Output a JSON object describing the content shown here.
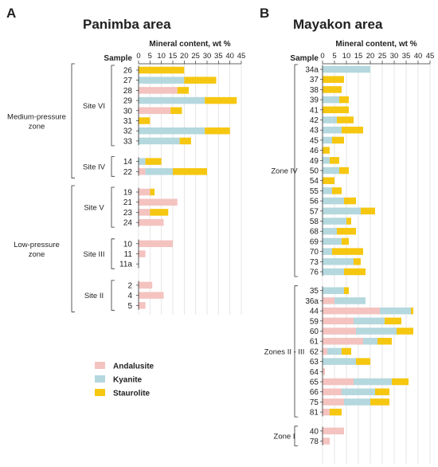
{
  "colors": {
    "Andalusite": "#f4c3c0",
    "Kyanite": "#b4d8de",
    "Staurolite": "#f6c710",
    "grid": "#dcdcdc",
    "axis": "#333333"
  },
  "legend": [
    {
      "name": "Andalusite",
      "color": "#f4c3c0"
    },
    {
      "name": "Kyanite",
      "color": "#b4d8de"
    },
    {
      "name": "Staurolite",
      "color": "#f6c710"
    }
  ],
  "chart_data": [
    {
      "type": "bar",
      "panel": "A",
      "title": "Panimba area",
      "xlabel": "Mineral content, wt %",
      "ylabel": "Sample",
      "xlim": [
        0,
        45
      ],
      "xticks": [
        0,
        5,
        10,
        15,
        20,
        25,
        30,
        35,
        40,
        45
      ],
      "stacked": true,
      "orientation": "horizontal",
      "series_names": [
        "Andalusite",
        "Kyanite",
        "Staurolite"
      ],
      "zones": [
        {
          "label": "Medium-pressure zone",
          "label_lines": [
            "Medium-pressure",
            "zone"
          ]
        },
        {
          "label": "Low-pressure zone",
          "label_lines": [
            "Low-pressure",
            "zone"
          ]
        }
      ],
      "groups": [
        {
          "label": "Site VI",
          "samples": [
            {
              "sample": "26",
              "Andalusite": 0,
              "Kyanite": 0,
              "Staurolite": 20
            },
            {
              "sample": "27",
              "Andalusite": 0,
              "Kyanite": 20,
              "Staurolite": 14
            },
            {
              "sample": "28",
              "Andalusite": 17,
              "Kyanite": 0,
              "Staurolite": 5
            },
            {
              "sample": "29",
              "Andalusite": 0,
              "Kyanite": 29,
              "Staurolite": 14
            },
            {
              "sample": "30",
              "Andalusite": 14,
              "Kyanite": 0,
              "Staurolite": 5
            },
            {
              "sample": "31",
              "Andalusite": 0,
              "Kyanite": 0,
              "Staurolite": 5
            },
            {
              "sample": "32",
              "Andalusite": 0,
              "Kyanite": 29,
              "Staurolite": 11
            },
            {
              "sample": "33",
              "Andalusite": 0,
              "Kyanite": 18,
              "Staurolite": 5
            }
          ]
        },
        {
          "label": "Site IV",
          "samples": [
            {
              "sample": "14",
              "Andalusite": 0,
              "Kyanite": 3,
              "Staurolite": 7
            },
            {
              "sample": "22",
              "Andalusite": 3,
              "Kyanite": 12,
              "Staurolite": 15
            }
          ]
        },
        {
          "label": "Site V",
          "samples": [
            {
              "sample": "19",
              "Andalusite": 5,
              "Kyanite": 0,
              "Staurolite": 2
            },
            {
              "sample": "21",
              "Andalusite": 17,
              "Kyanite": 0,
              "Staurolite": 0
            },
            {
              "sample": "23",
              "Andalusite": 5,
              "Kyanite": 0,
              "Staurolite": 8
            },
            {
              "sample": "24",
              "Andalusite": 11,
              "Kyanite": 0,
              "Staurolite": 0
            }
          ]
        },
        {
          "label": "Site III",
          "samples": [
            {
              "sample": "10",
              "Andalusite": 15,
              "Kyanite": 0,
              "Staurolite": 0
            },
            {
              "sample": "11",
              "Andalusite": 3,
              "Kyanite": 0,
              "Staurolite": 0
            },
            {
              "sample": "11a",
              "Andalusite": 0,
              "Kyanite": 0,
              "Staurolite": 0
            }
          ]
        },
        {
          "label": "Site II",
          "samples": [
            {
              "sample": "2",
              "Andalusite": 6,
              "Kyanite": 0,
              "Staurolite": 0
            },
            {
              "sample": "4",
              "Andalusite": 11,
              "Kyanite": 0,
              "Staurolite": 0
            },
            {
              "sample": "5",
              "Andalusite": 3,
              "Kyanite": 0,
              "Staurolite": 0
            }
          ]
        }
      ]
    },
    {
      "type": "bar",
      "panel": "B",
      "title": "Mayakon area",
      "xlabel": "Mineral content, wt %",
      "ylabel": "Sample",
      "xlim": [
        0,
        45
      ],
      "xticks": [
        0,
        5,
        10,
        15,
        20,
        25,
        30,
        35,
        40,
        45
      ],
      "stacked": true,
      "orientation": "horizontal",
      "series_names": [
        "Andalusite",
        "Kyanite",
        "Staurolite"
      ],
      "groups": [
        {
          "label": "Zone IV",
          "samples": [
            {
              "sample": "34a",
              "Andalusite": 0,
              "Kyanite": 20,
              "Staurolite": 0
            },
            {
              "sample": "37",
              "Andalusite": 0,
              "Kyanite": 0,
              "Staurolite": 9
            },
            {
              "sample": "38",
              "Andalusite": 0,
              "Kyanite": 0,
              "Staurolite": 8
            },
            {
              "sample": "39",
              "Andalusite": 0,
              "Kyanite": 7,
              "Staurolite": 4
            },
            {
              "sample": "41",
              "Andalusite": 0,
              "Kyanite": 0,
              "Staurolite": 11
            },
            {
              "sample": "42",
              "Andalusite": 0,
              "Kyanite": 6,
              "Staurolite": 7
            },
            {
              "sample": "43",
              "Andalusite": 0,
              "Kyanite": 8,
              "Staurolite": 9
            },
            {
              "sample": "45",
              "Andalusite": 0,
              "Kyanite": 4,
              "Staurolite": 5
            },
            {
              "sample": "46",
              "Andalusite": 0,
              "Kyanite": 0,
              "Staurolite": 3
            },
            {
              "sample": "49",
              "Andalusite": 0,
              "Kyanite": 3,
              "Staurolite": 4
            },
            {
              "sample": "50",
              "Andalusite": 0,
              "Kyanite": 7,
              "Staurolite": 4
            },
            {
              "sample": "54",
              "Andalusite": 0,
              "Kyanite": 0,
              "Staurolite": 5
            },
            {
              "sample": "55",
              "Andalusite": 0,
              "Kyanite": 4,
              "Staurolite": 4
            },
            {
              "sample": "56",
              "Andalusite": 0,
              "Kyanite": 9,
              "Staurolite": 5
            },
            {
              "sample": "57",
              "Andalusite": 0,
              "Kyanite": 16,
              "Staurolite": 6
            },
            {
              "sample": "58",
              "Andalusite": 0,
              "Kyanite": 10,
              "Staurolite": 2
            },
            {
              "sample": "68",
              "Andalusite": 0,
              "Kyanite": 6,
              "Staurolite": 8
            },
            {
              "sample": "69",
              "Andalusite": 0,
              "Kyanite": 8,
              "Staurolite": 3
            },
            {
              "sample": "70",
              "Andalusite": 0,
              "Kyanite": 4,
              "Staurolite": 13
            },
            {
              "sample": "73",
              "Andalusite": 0,
              "Kyanite": 13,
              "Staurolite": 3
            },
            {
              "sample": "76",
              "Andalusite": 0,
              "Kyanite": 9,
              "Staurolite": 9
            }
          ]
        },
        {
          "label": "Zones II - III",
          "samples": [
            {
              "sample": "35",
              "Andalusite": 0,
              "Kyanite": 9,
              "Staurolite": 2
            },
            {
              "sample": "36a",
              "Andalusite": 5,
              "Kyanite": 13,
              "Staurolite": 0
            },
            {
              "sample": "44",
              "Andalusite": 24,
              "Kyanite": 13,
              "Staurolite": 1
            },
            {
              "sample": "59",
              "Andalusite": 13,
              "Kyanite": 13,
              "Staurolite": 7
            },
            {
              "sample": "60",
              "Andalusite": 14,
              "Kyanite": 17,
              "Staurolite": 7
            },
            {
              "sample": "61",
              "Andalusite": 17,
              "Kyanite": 6,
              "Staurolite": 6
            },
            {
              "sample": "62",
              "Andalusite": 2,
              "Kyanite": 6,
              "Staurolite": 4
            },
            {
              "sample": "63",
              "Andalusite": 0,
              "Kyanite": 14,
              "Staurolite": 6
            },
            {
              "sample": "64",
              "Andalusite": 1,
              "Kyanite": 0,
              "Staurolite": 0
            },
            {
              "sample": "65",
              "Andalusite": 13,
              "Kyanite": 16,
              "Staurolite": 7
            },
            {
              "sample": "66",
              "Andalusite": 8,
              "Kyanite": 14,
              "Staurolite": 6
            },
            {
              "sample": "75",
              "Andalusite": 9,
              "Kyanite": 11,
              "Staurolite": 8
            },
            {
              "sample": "81",
              "Andalusite": 3,
              "Kyanite": 0,
              "Staurolite": 5
            }
          ]
        },
        {
          "label": "Zone I",
          "samples": [
            {
              "sample": "40",
              "Andalusite": 9,
              "Kyanite": 0,
              "Staurolite": 0
            },
            {
              "sample": "78",
              "Andalusite": 3,
              "Kyanite": 0,
              "Staurolite": 0
            }
          ]
        }
      ]
    }
  ]
}
